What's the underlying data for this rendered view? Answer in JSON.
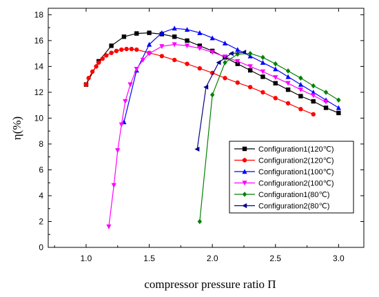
{
  "chart_data": {
    "type": "line",
    "xlabel": "compressor pressure ratio Π",
    "ylabel": "η(%)",
    "xlim": [
      0.7,
      3.2
    ],
    "ylim": [
      0,
      18.5
    ],
    "xticks": [
      "1.0",
      "1.5",
      "2.0",
      "2.5",
      "3.0"
    ],
    "yticks": [
      "0",
      "2",
      "4",
      "6",
      "8",
      "10",
      "12",
      "14",
      "16",
      "18"
    ],
    "legend_position": "right",
    "series": [
      {
        "name": "Configuration1(120℃)",
        "color": "#000000",
        "marker": "square",
        "x": [
          1.0,
          1.1,
          1.2,
          1.3,
          1.4,
          1.5,
          1.6,
          1.7,
          1.8,
          1.9,
          2.0,
          2.1,
          2.2,
          2.3,
          2.4,
          2.5,
          2.6,
          2.7,
          2.8,
          2.9,
          3.0
        ],
        "y": [
          12.6,
          14.4,
          15.6,
          16.3,
          16.55,
          16.6,
          16.5,
          16.3,
          16.0,
          15.6,
          15.2,
          14.7,
          14.2,
          13.7,
          13.2,
          12.7,
          12.2,
          11.7,
          11.3,
          10.8,
          10.4
        ]
      },
      {
        "name": "Configuration2(120℃)",
        "color": "#ff0000",
        "marker": "circle",
        "x": [
          1.0,
          1.02,
          1.05,
          1.08,
          1.1,
          1.13,
          1.16,
          1.2,
          1.24,
          1.28,
          1.32,
          1.36,
          1.4,
          1.5,
          1.6,
          1.7,
          1.8,
          1.9,
          2.0,
          2.1,
          2.2,
          2.3,
          2.4,
          2.5,
          2.6,
          2.7,
          2.8
        ],
        "y": [
          12.6,
          13.1,
          13.6,
          14.0,
          14.3,
          14.6,
          14.85,
          15.05,
          15.2,
          15.3,
          15.35,
          15.35,
          15.3,
          15.05,
          14.8,
          14.5,
          14.2,
          13.85,
          13.5,
          13.1,
          12.75,
          12.4,
          12.0,
          11.55,
          11.15,
          10.7,
          10.3
        ]
      },
      {
        "name": "Configuration1(100℃)",
        "color": "#0000ff",
        "marker": "triangle-up",
        "x": [
          1.3,
          1.4,
          1.5,
          1.6,
          1.7,
          1.8,
          1.9,
          2.0,
          2.1,
          2.2,
          2.3,
          2.4,
          2.5,
          2.6,
          2.7,
          2.8,
          2.9,
          3.0
        ],
        "y": [
          9.7,
          13.7,
          15.7,
          16.6,
          16.95,
          16.85,
          16.6,
          16.2,
          15.8,
          15.3,
          14.8,
          14.3,
          13.8,
          13.2,
          12.6,
          12.0,
          11.4,
          10.8
        ]
      },
      {
        "name": "Configuration2(100℃)",
        "color": "#ff00ff",
        "marker": "triangle-down",
        "x": [
          1.18,
          1.22,
          1.25,
          1.28,
          1.31,
          1.35,
          1.4,
          1.45,
          1.5,
          1.6,
          1.7,
          1.8,
          1.9,
          2.0,
          2.1,
          2.2,
          2.3,
          2.4,
          2.5,
          2.6,
          2.7,
          2.8,
          2.9
        ],
        "y": [
          1.6,
          4.8,
          7.5,
          9.5,
          11.3,
          12.6,
          13.8,
          14.5,
          15.0,
          15.55,
          15.7,
          15.6,
          15.4,
          15.1,
          14.75,
          14.4,
          14.0,
          13.6,
          13.15,
          12.7,
          12.2,
          11.75,
          11.25
        ]
      },
      {
        "name": "Configuration1(80℃)",
        "color": "#008000",
        "marker": "diamond",
        "x": [
          1.9,
          2.0,
          2.1,
          2.2,
          2.3,
          2.4,
          2.5,
          2.6,
          2.7,
          2.8,
          2.9,
          3.0
        ],
        "y": [
          2.0,
          11.8,
          14.3,
          14.95,
          15.0,
          14.7,
          14.2,
          13.65,
          13.1,
          12.5,
          12.0,
          11.4
        ]
      },
      {
        "name": "Configuration2(80℃)",
        "color": "#00008b",
        "marker": "triangle-left",
        "x": [
          1.88,
          1.95,
          2.05,
          2.15,
          2.25
        ],
        "y": [
          7.6,
          12.4,
          14.3,
          15.0,
          15.1
        ]
      }
    ]
  }
}
